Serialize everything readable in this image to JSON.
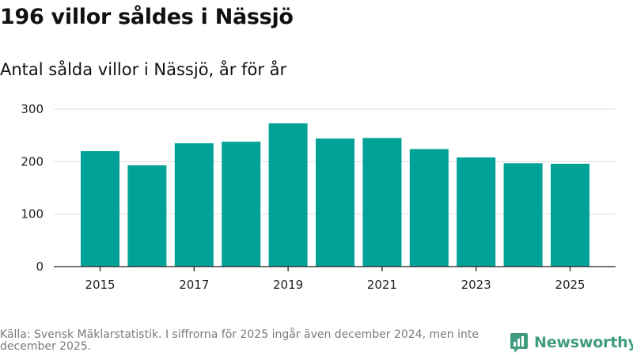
{
  "title": "196 villor såldes i Nässjö",
  "subtitle": "Antal sålda villor i Nässjö, år för år",
  "footer": "Källa: Svensk Mäklarstatistik. I siffrorna för 2025 ingår även december 2024, men inte december 2025.",
  "logo": {
    "text": "Newsworthy",
    "icon": "newsworthy-bar-chart-icon",
    "color": "#3f9c80"
  },
  "colors": {
    "bar": "#00a197",
    "grid": "#dddddd",
    "axis": "#222222"
  },
  "chart_data": {
    "type": "bar",
    "categories": [
      "2015",
      "2016",
      "2017",
      "2018",
      "2019",
      "2020",
      "2021",
      "2022",
      "2023",
      "2024",
      "2025"
    ],
    "values": [
      220,
      193,
      235,
      238,
      273,
      244,
      245,
      224,
      208,
      197,
      196
    ],
    "xtick_labels": [
      "2015",
      "2017",
      "2019",
      "2021",
      "2023",
      "2025"
    ],
    "yticks": [
      0,
      100,
      200,
      300
    ],
    "ylim": [
      0,
      300
    ],
    "title": "196 villor såldes i Nässjö",
    "subtitle": "Antal sålda villor i Nässjö, år för år",
    "xlabel": "",
    "ylabel": "",
    "grid": true
  }
}
